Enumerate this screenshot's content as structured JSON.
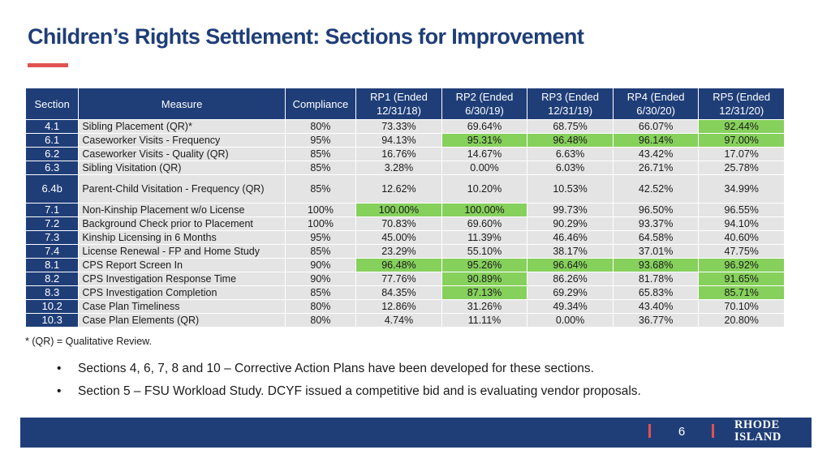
{
  "title": "Children’s Rights Settlement: Sections for Improvement",
  "table": {
    "headers": [
      "Section",
      "Measure",
      "Compliance",
      "RP1 (Ended 12/31/18)",
      "RP2 (Ended 6/30/19)",
      "RP3 (Ended 12/31/19)",
      "RP4 (Ended 6/30/20)",
      "RP5 (Ended 12/31/20)"
    ],
    "rows": [
      {
        "section": "4.1",
        "measure": "Sibling Placement (QR)*",
        "compliance": "80%",
        "rp": [
          "73.33%",
          "69.64%",
          "68.75%",
          "66.07%",
          "92.44%"
        ],
        "met": [
          false,
          false,
          false,
          false,
          true
        ]
      },
      {
        "section": "6.1",
        "measure": "Caseworker Visits - Frequency",
        "compliance": "95%",
        "rp": [
          "94.13%",
          "95.31%",
          "96.48%",
          "96.14%",
          "97.00%"
        ],
        "met": [
          false,
          true,
          true,
          true,
          true
        ]
      },
      {
        "section": "6.2",
        "measure": "Caseworker Visits - Quality (QR)",
        "compliance": "85%",
        "rp": [
          "16.76%",
          "14.67%",
          "6.63%",
          "43.42%",
          "17.07%"
        ],
        "met": [
          false,
          false,
          false,
          false,
          false
        ]
      },
      {
        "section": "6.3",
        "measure": "Sibling Visitation (QR)",
        "compliance": "85%",
        "rp": [
          "3.28%",
          "0.00%",
          "6.03%",
          "26.71%",
          "25.78%"
        ],
        "met": [
          false,
          false,
          false,
          false,
          false
        ]
      },
      {
        "section": "6.4b",
        "measure": "Parent-Child Visitation - Frequency (QR)",
        "compliance": "85%",
        "rp": [
          "12.62%",
          "10.20%",
          "10.53%",
          "42.52%",
          "34.99%"
        ],
        "met": [
          false,
          false,
          false,
          false,
          false
        ]
      },
      {
        "section": "7.1",
        "measure": "Non-Kinship Placement w/o License",
        "compliance": "100%",
        "rp": [
          "100.00%",
          "100.00%",
          "99.73%",
          "96.50%",
          "96.55%"
        ],
        "met": [
          true,
          true,
          false,
          false,
          false
        ]
      },
      {
        "section": "7.2",
        "measure": "Background Check prior to Placement",
        "compliance": "100%",
        "rp": [
          "70.83%",
          "69.60%",
          "90.29%",
          "93.37%",
          "94.10%"
        ],
        "met": [
          false,
          false,
          false,
          false,
          false
        ]
      },
      {
        "section": "7.3",
        "measure": "Kinship Licensing in 6 Months",
        "compliance": "95%",
        "rp": [
          "45.00%",
          "11.39%",
          "46.46%",
          "64.58%",
          "40.60%"
        ],
        "met": [
          false,
          false,
          false,
          false,
          false
        ]
      },
      {
        "section": "7.4",
        "measure": "License Renewal - FP and Home Study",
        "compliance": "85%",
        "rp": [
          "23.29%",
          "55.10%",
          "38.17%",
          "37.01%",
          "47.75%"
        ],
        "met": [
          false,
          false,
          false,
          false,
          false
        ]
      },
      {
        "section": "8.1",
        "measure": "CPS Report Screen In",
        "compliance": "90%",
        "rp": [
          "96.48%",
          "95.26%",
          "96.64%",
          "93.68%",
          "96.92%"
        ],
        "met": [
          true,
          true,
          true,
          true,
          true
        ]
      },
      {
        "section": "8.2",
        "measure": "CPS Investigation Response Time",
        "compliance": "90%",
        "rp": [
          "77.76%",
          "90.89%",
          "86.26%",
          "81.78%",
          "91.65%"
        ],
        "met": [
          false,
          true,
          false,
          false,
          true
        ]
      },
      {
        "section": "8.3",
        "measure": "CPS Investigation Completion",
        "compliance": "85%",
        "rp": [
          "84.35%",
          "87.13%",
          "69.29%",
          "65.83%",
          "85.71%"
        ],
        "met": [
          false,
          true,
          false,
          false,
          true
        ]
      },
      {
        "section": "10.2",
        "measure": "Case Plan Timeliness",
        "compliance": "80%",
        "rp": [
          "12.86%",
          "31.26%",
          "49.34%",
          "43.40%",
          "70.10%"
        ],
        "met": [
          false,
          false,
          false,
          false,
          false
        ]
      },
      {
        "section": "10.3",
        "measure": "Case Plan Elements (QR)",
        "compliance": "80%",
        "rp": [
          "4.74%",
          "11.11%",
          "0.00%",
          "36.77%",
          "20.80%"
        ],
        "met": [
          false,
          false,
          false,
          false,
          false
        ]
      }
    ]
  },
  "footnote": "* (QR) = Qualitative Review.",
  "bullets": [
    {
      "lead": "Sections 4, 6, 7, 8 and 10 –",
      "text": " Corrective Action Plans have been developed for these sections."
    },
    {
      "lead": "Section 5 – FSU Workload Study.",
      "text": " DCYF issued a competitive bid and is evaluating vendor proposals."
    }
  ],
  "footer": {
    "page_number": "6",
    "brand_line1": "RHODE",
    "brand_line2": "ISLAND"
  },
  "colors": {
    "navy": "#1f3e78",
    "accent_red": "#e05252",
    "met_green": "#86d05c",
    "cell_gray": "#e4e4e4"
  }
}
